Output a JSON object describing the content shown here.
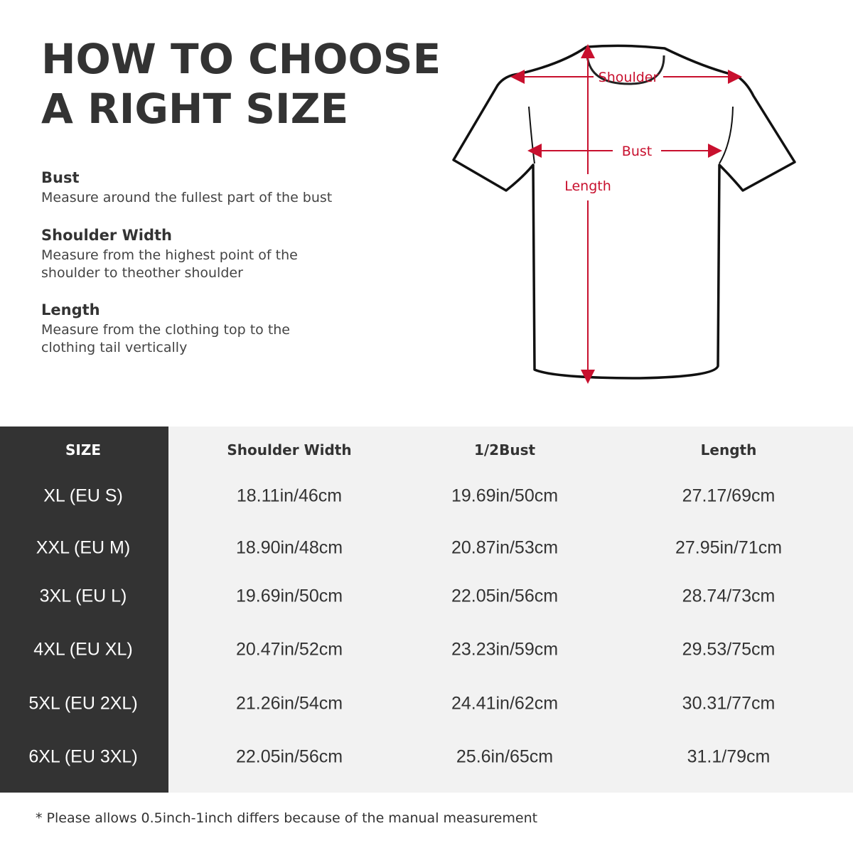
{
  "title_lines": [
    "HOW TO CHOOSE",
    "A RIGHT SIZE"
  ],
  "sections": [
    {
      "heading": "Bust",
      "text": "Measure around the fullest part of the bust"
    },
    {
      "heading": "Shoulder Width",
      "text": "Measure from the highest point of the\nshoulder to theother shoulder"
    },
    {
      "heading": "Length",
      "text": "Measure from the clothing top to the\nclothing tail vertically"
    }
  ],
  "diagram": {
    "shoulder_label": "Shoulder",
    "bust_label": "Bust",
    "length_label": "Length",
    "accent_color": "#c8102e"
  },
  "table": {
    "headers": [
      "SIZE",
      "Shoulder Width",
      "1/2Bust",
      "Length"
    ],
    "rows": [
      [
        "XL (EU S)",
        "18.11in/46cm",
        "19.69in/50cm",
        "27.17/69cm"
      ],
      [
        "XXL (EU M)",
        "18.90in/48cm",
        "20.87in/53cm",
        "27.95in/71cm"
      ],
      [
        "3XL (EU L)",
        "19.69in/50cm",
        "22.05in/56cm",
        "28.74/73cm"
      ],
      [
        "4XL (EU XL)",
        "20.47in/52cm",
        "23.23in/59cm",
        "29.53/75cm"
      ],
      [
        "5XL (EU 2XL)",
        "21.26in/54cm",
        "24.41in/62cm",
        "30.31/77cm"
      ],
      [
        "6XL (EU 3XL)",
        "22.05in/56cm",
        "25.6in/65cm",
        "31.1/79cm"
      ]
    ]
  },
  "footnote": "* Please allows 0.5inch-1inch differs because of the  manual measurement"
}
